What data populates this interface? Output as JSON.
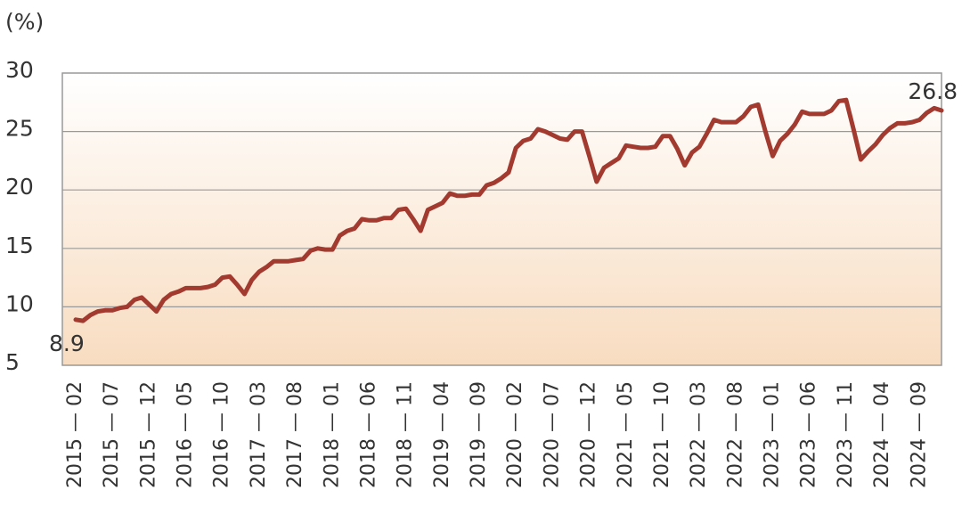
{
  "chart_data": {
    "type": "line",
    "y_label": "(%)",
    "categories": [
      "2015 — 02",
      null,
      null,
      null,
      null,
      "2015 — 07",
      null,
      null,
      null,
      null,
      "2015 — 12",
      null,
      null,
      null,
      null,
      "2016 — 05",
      null,
      null,
      null,
      null,
      "2016 — 10",
      null,
      null,
      null,
      null,
      "2017 — 03",
      null,
      null,
      null,
      null,
      "2017 — 08",
      null,
      null,
      null,
      null,
      "2018 — 01",
      null,
      null,
      null,
      null,
      "2018 — 06",
      null,
      null,
      null,
      null,
      "2018 — 11",
      null,
      null,
      null,
      null,
      "2019 — 04",
      null,
      null,
      null,
      null,
      "2019 — 09",
      null,
      null,
      null,
      null,
      "2020 — 02",
      null,
      null,
      null,
      null,
      "2020 — 07",
      null,
      null,
      null,
      null,
      "2020 — 12",
      null,
      null,
      null,
      null,
      "2021 — 05",
      null,
      null,
      null,
      null,
      "2021 — 10",
      null,
      null,
      null,
      null,
      "2022 — 03",
      null,
      null,
      null,
      null,
      "2022 — 08",
      null,
      null,
      null,
      null,
      "2023 — 01",
      null,
      null,
      null,
      null,
      "2023 — 06",
      null,
      null,
      null,
      null,
      "2023 — 11",
      null,
      null,
      null,
      null,
      "2024 — 04",
      null,
      null,
      null,
      null,
      "2024 — 09",
      null,
      null,
      null
    ],
    "values": [
      8.9,
      8.8,
      9.3,
      9.6,
      9.7,
      9.7,
      9.9,
      10.0,
      10.6,
      10.8,
      10.2,
      9.6,
      10.6,
      11.1,
      11.3,
      11.6,
      11.6,
      11.6,
      11.7,
      11.9,
      12.5,
      12.6,
      11.9,
      11.1,
      12.3,
      13.0,
      13.4,
      13.9,
      13.9,
      13.9,
      14.0,
      14.1,
      14.8,
      15.0,
      14.9,
      14.9,
      16.1,
      16.5,
      16.7,
      17.5,
      17.4,
      17.4,
      17.6,
      17.6,
      18.3,
      18.4,
      17.5,
      16.5,
      18.3,
      18.6,
      18.9,
      19.7,
      19.5,
      19.5,
      19.6,
      19.6,
      20.4,
      20.6,
      21.0,
      21.5,
      23.6,
      24.2,
      24.4,
      25.2,
      25.0,
      24.7,
      24.4,
      24.3,
      25.0,
      25.0,
      22.9,
      20.7,
      21.9,
      22.3,
      22.7,
      23.8,
      23.7,
      23.6,
      23.6,
      23.7,
      24.6,
      24.6,
      23.5,
      22.1,
      23.2,
      23.7,
      24.8,
      26.0,
      25.8,
      25.8,
      25.8,
      26.3,
      27.1,
      27.3,
      25.0,
      22.9,
      24.2,
      24.8,
      25.6,
      26.7,
      26.5,
      26.5,
      26.5,
      26.8,
      27.6,
      27.7,
      25.2,
      22.6,
      23.3,
      23.9,
      24.7,
      25.3,
      25.7,
      25.7,
      25.8,
      26.0,
      26.6,
      27.0,
      26.8
    ],
    "color": "#a23a30",
    "ylim": [
      5,
      30
    ],
    "yticks": [
      5,
      10,
      15,
      20,
      25,
      30
    ],
    "grid": true
  }
}
